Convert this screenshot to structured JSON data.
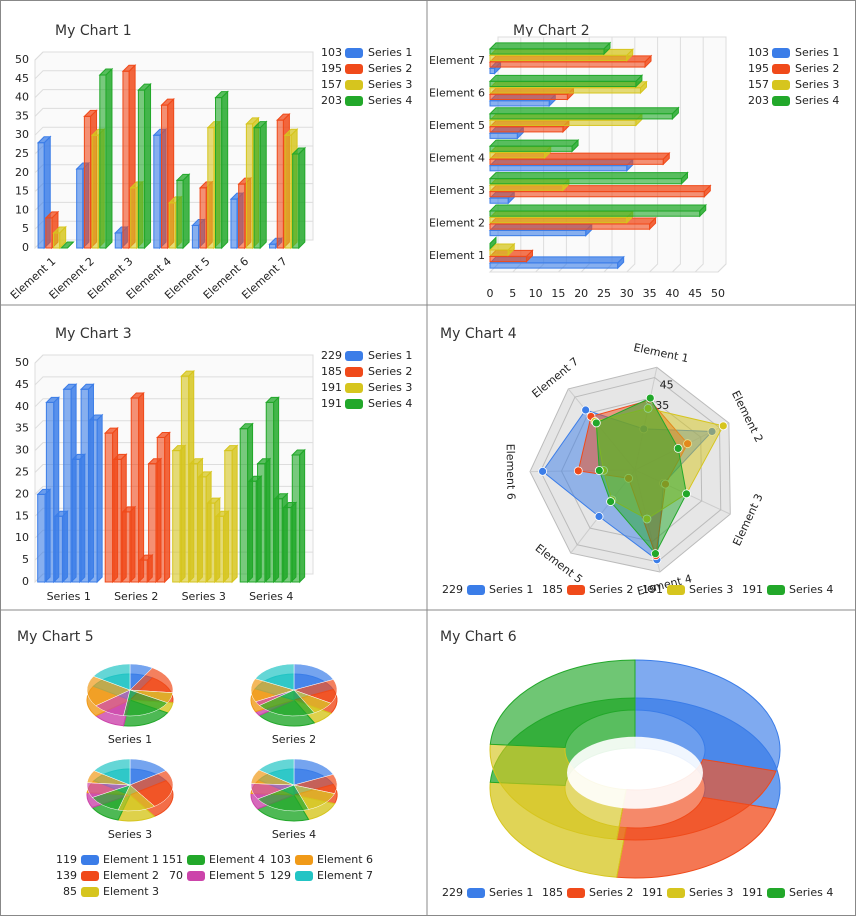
{
  "chart_data": [
    {
      "type": "bar",
      "title": "My Chart 1",
      "categories": [
        "Element 1",
        "Element 2",
        "Element 3",
        "Element 4",
        "Element 5",
        "Element 6",
        "Element 7"
      ],
      "series": [
        {
          "name": "Series 1",
          "color": "#3b7de8",
          "legend_value": 103,
          "values": [
            28,
            21,
            4,
            30,
            6,
            13,
            1
          ]
        },
        {
          "name": "Series 2",
          "color": "#f04a1a",
          "legend_value": 195,
          "values": [
            8,
            35,
            47,
            38,
            16,
            17,
            34
          ]
        },
        {
          "name": "Series 3",
          "color": "#d6c51e",
          "legend_value": 157,
          "values": [
            4,
            30,
            16,
            12,
            32,
            33,
            30
          ]
        },
        {
          "name": "Series 4",
          "color": "#22a82a",
          "legend_value": 203,
          "values": [
            0,
            46,
            42,
            18,
            40,
            32,
            25
          ]
        }
      ],
      "ylim": [
        0,
        50
      ],
      "yticks": [
        0,
        5,
        10,
        15,
        20,
        25,
        30,
        35,
        40,
        45,
        50
      ],
      "grid": true
    },
    {
      "type": "barh",
      "title": "My Chart 2",
      "categories": [
        "Element 1",
        "Element 2",
        "Element 3",
        "Element 4",
        "Element 5",
        "Element 6",
        "Element 7"
      ],
      "series": [
        {
          "name": "Series 1",
          "color": "#3b7de8",
          "legend_value": 103,
          "values": [
            28,
            21,
            4,
            30,
            6,
            13,
            1
          ]
        },
        {
          "name": "Series 2",
          "color": "#f04a1a",
          "legend_value": 195,
          "values": [
            8,
            35,
            47,
            38,
            16,
            17,
            34
          ]
        },
        {
          "name": "Series 3",
          "color": "#d6c51e",
          "legend_value": 157,
          "values": [
            4,
            30,
            16,
            12,
            32,
            33,
            30
          ]
        },
        {
          "name": "Series 4",
          "color": "#22a82a",
          "legend_value": 203,
          "values": [
            0,
            46,
            42,
            18,
            40,
            32,
            25
          ]
        }
      ],
      "xlim": [
        0,
        50
      ],
      "xticks": [
        0,
        5,
        10,
        15,
        20,
        25,
        30,
        35,
        40,
        45,
        50
      ],
      "grid": true
    },
    {
      "type": "series_bar",
      "title": "My Chart 3",
      "series": [
        {
          "name": "Series 1",
          "color": "#3b7de8",
          "legend_value": 229,
          "values": [
            20,
            41,
            15,
            44,
            28,
            44,
            37
          ]
        },
        {
          "name": "Series 2",
          "color": "#f04a1a",
          "legend_value": 185,
          "values": [
            34,
            28,
            16,
            42,
            5,
            27,
            33
          ]
        },
        {
          "name": "Series 3",
          "color": "#d6c51e",
          "legend_value": 191,
          "values": [
            30,
            47,
            27,
            24,
            18,
            15,
            30
          ]
        },
        {
          "name": "Series 4",
          "color": "#22a82a",
          "legend_value": 191,
          "values": [
            35,
            23,
            27,
            41,
            19,
            17,
            29
          ]
        }
      ],
      "ylim": [
        0,
        50
      ],
      "yticks": [
        0,
        5,
        10,
        15,
        20,
        25,
        30,
        35,
        40,
        45,
        50
      ],
      "grid": true
    },
    {
      "type": "radar",
      "title": "My Chart 4",
      "categories": [
        "Element 1",
        "Element 2",
        "Element 3",
        "Element 4",
        "Element 5",
        "Element 6",
        "Element 7"
      ],
      "series": [
        {
          "name": "Series 1",
          "color": "#3b7de8",
          "legend_value": 229,
          "values": [
            20,
            41,
            15,
            44,
            28,
            44,
            37
          ]
        },
        {
          "name": "Series 2",
          "color": "#f04a1a",
          "legend_value": 185,
          "values": [
            34,
            28,
            16,
            42,
            5,
            27,
            33
          ]
        },
        {
          "name": "Series 3",
          "color": "#d6c51e",
          "legend_value": 191,
          "values": [
            30,
            47,
            27,
            24,
            18,
            15,
            30
          ]
        },
        {
          "name": "Series 4",
          "color": "#22a82a",
          "legend_value": 191,
          "values": [
            35,
            23,
            27,
            41,
            19,
            17,
            29
          ]
        }
      ],
      "rlim": [
        0,
        50
      ],
      "rticks": [
        35,
        45
      ]
    },
    {
      "type": "pie_multi",
      "title": "My Chart 5",
      "categories": [
        "Element 1",
        "Element 2",
        "Element 3",
        "Element 4",
        "Element 5",
        "Element 6",
        "Element 7"
      ],
      "colors": [
        "#3b7de8",
        "#f04a1a",
        "#d6c51e",
        "#22a82a",
        "#cc44aa",
        "#f09a18",
        "#22c4c4"
      ],
      "legend_values": [
        119,
        139,
        85,
        151,
        70,
        103,
        129
      ],
      "series": [
        {
          "name": "Series 1",
          "values": [
            20,
            41,
            15,
            44,
            28,
            44,
            37
          ]
        },
        {
          "name": "Series 2",
          "values": [
            34,
            28,
            16,
            42,
            5,
            27,
            33
          ]
        },
        {
          "name": "Series 3",
          "values": [
            30,
            47,
            27,
            24,
            18,
            15,
            30
          ]
        },
        {
          "name": "Series 4",
          "values": [
            35,
            23,
            27,
            41,
            19,
            17,
            29
          ]
        }
      ]
    },
    {
      "type": "donut",
      "title": "My Chart 6",
      "categories": [
        "Series 1",
        "Series 2",
        "Series 3",
        "Series 4"
      ],
      "colors": [
        "#3b7de8",
        "#f04a1a",
        "#d6c51e",
        "#22a82a"
      ],
      "values": [
        229,
        185,
        191,
        191
      ]
    }
  ]
}
